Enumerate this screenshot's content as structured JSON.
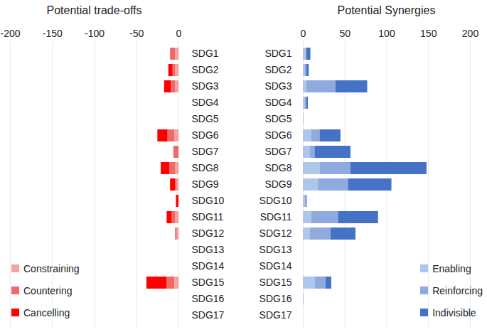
{
  "chart_data": [
    {
      "type": "bar",
      "title": "Potential trade-offs",
      "orientation": "horizontal",
      "stacked": true,
      "grid": true,
      "legend": "bottom-left",
      "categories": [
        "SDG1",
        "SDG2",
        "SDG3",
        "SDG4",
        "SDG5",
        "SDG6",
        "SDG7",
        "SDG8",
        "SDG9",
        "SDG10",
        "SDG11",
        "SDG12",
        "SDG13",
        "SDG14",
        "SDG15",
        "SDG16",
        "SDG17"
      ],
      "series": [
        {
          "name": "Constraining",
          "color": "#f4a3a3",
          "values": [
            -4,
            -4,
            -4,
            0,
            0,
            -5,
            0,
            -4,
            -2,
            0,
            -4,
            -2,
            0,
            0,
            -5,
            0,
            0
          ]
        },
        {
          "name": "Countering",
          "color": "#ee6a6a",
          "values": [
            -6,
            -3,
            -5,
            0,
            0,
            -8,
            -6,
            -7,
            -2,
            0,
            -4,
            -2,
            0,
            0,
            -9,
            0,
            0
          ]
        },
        {
          "name": "Cancelling",
          "color": "#ff0000",
          "values": [
            0,
            -5,
            -8,
            0,
            0,
            -12,
            0,
            -10,
            -6,
            -3,
            -6,
            0,
            0,
            0,
            -24,
            0,
            0
          ]
        }
      ],
      "xlim": [
        -200,
        0
      ],
      "xticks": [
        -200,
        -150,
        -100,
        -50,
        0
      ]
    },
    {
      "type": "bar",
      "title": "Potential Synergies",
      "orientation": "horizontal",
      "stacked": true,
      "grid": true,
      "legend": "bottom-right",
      "categories": [
        "SDG1",
        "SDG2",
        "SDG3",
        "SDG4",
        "SDG5",
        "SDG6",
        "SDG7",
        "SDG8",
        "SDG9",
        "SDG10",
        "SDG11",
        "SDG12",
        "SDG13",
        "SDG14",
        "SDG15",
        "SDG16",
        "SDG17"
      ],
      "series": [
        {
          "name": "Enabling",
          "color": "#adc6e9",
          "values": [
            3,
            2,
            4,
            2,
            1,
            10,
            8,
            20,
            18,
            2,
            10,
            8,
            0,
            0,
            14,
            1,
            0
          ]
        },
        {
          "name": "Reinforcing",
          "color": "#8eaadf",
          "values": [
            1,
            2,
            35,
            2,
            0,
            10,
            6,
            37,
            36,
            3,
            32,
            25,
            0,
            0,
            13,
            0,
            0
          ]
        },
        {
          "name": "Indivisible",
          "color": "#4472c4",
          "values": [
            5,
            3,
            38,
            2,
            0,
            25,
            43,
            91,
            52,
            0,
            48,
            30,
            0,
            0,
            7,
            0,
            0
          ]
        }
      ],
      "xlim": [
        0,
        200
      ],
      "xticks": [
        0,
        50,
        100,
        150,
        200
      ]
    }
  ]
}
